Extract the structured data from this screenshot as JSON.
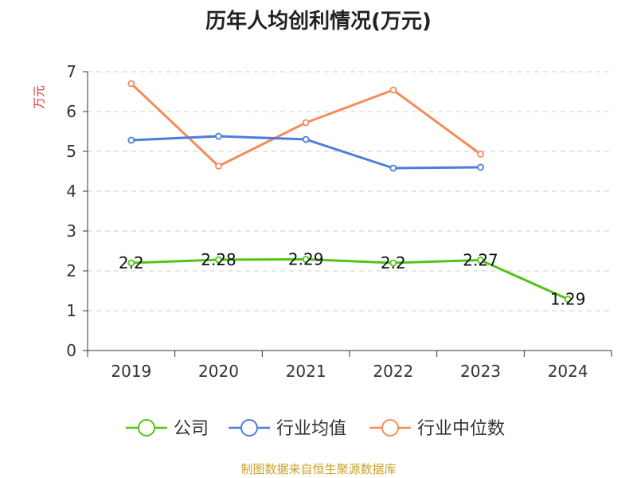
{
  "footer": "制图数据来自恒生聚源数据库",
  "chart_data": {
    "type": "line",
    "title": "历年人均创利情况(万元)",
    "ylabel": "万元",
    "xlabel": "",
    "categories": [
      "2019",
      "2020",
      "2021",
      "2022",
      "2023",
      "2024"
    ],
    "ylim": [
      0,
      7
    ],
    "yticks": [
      "0",
      "1",
      "2",
      "3",
      "4",
      "5",
      "6",
      "7"
    ],
    "grid": true,
    "legend_position": "bottom",
    "series": [
      {
        "name": "公司",
        "color": "#52c41a",
        "values": [
          2.2,
          2.28,
          2.29,
          2.2,
          2.27,
          1.29
        ],
        "labels": [
          "2.2",
          "2.28",
          "2.29",
          "2.2",
          "2.27",
          "1.29"
        ]
      },
      {
        "name": "行业均值",
        "color": "#4a7edb",
        "values": [
          5.28,
          5.38,
          5.3,
          4.58,
          4.6,
          null
        ]
      },
      {
        "name": "行业中位数",
        "color": "#f48c5b",
        "values": [
          6.7,
          4.63,
          5.72,
          6.54,
          4.93,
          null
        ]
      }
    ]
  }
}
